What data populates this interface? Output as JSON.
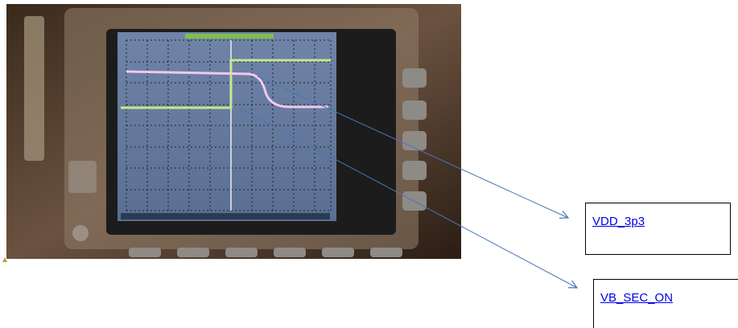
{
  "callouts": [
    {
      "label": "VDD_3p3"
    },
    {
      "label": "VB_SEC_ON"
    }
  ]
}
